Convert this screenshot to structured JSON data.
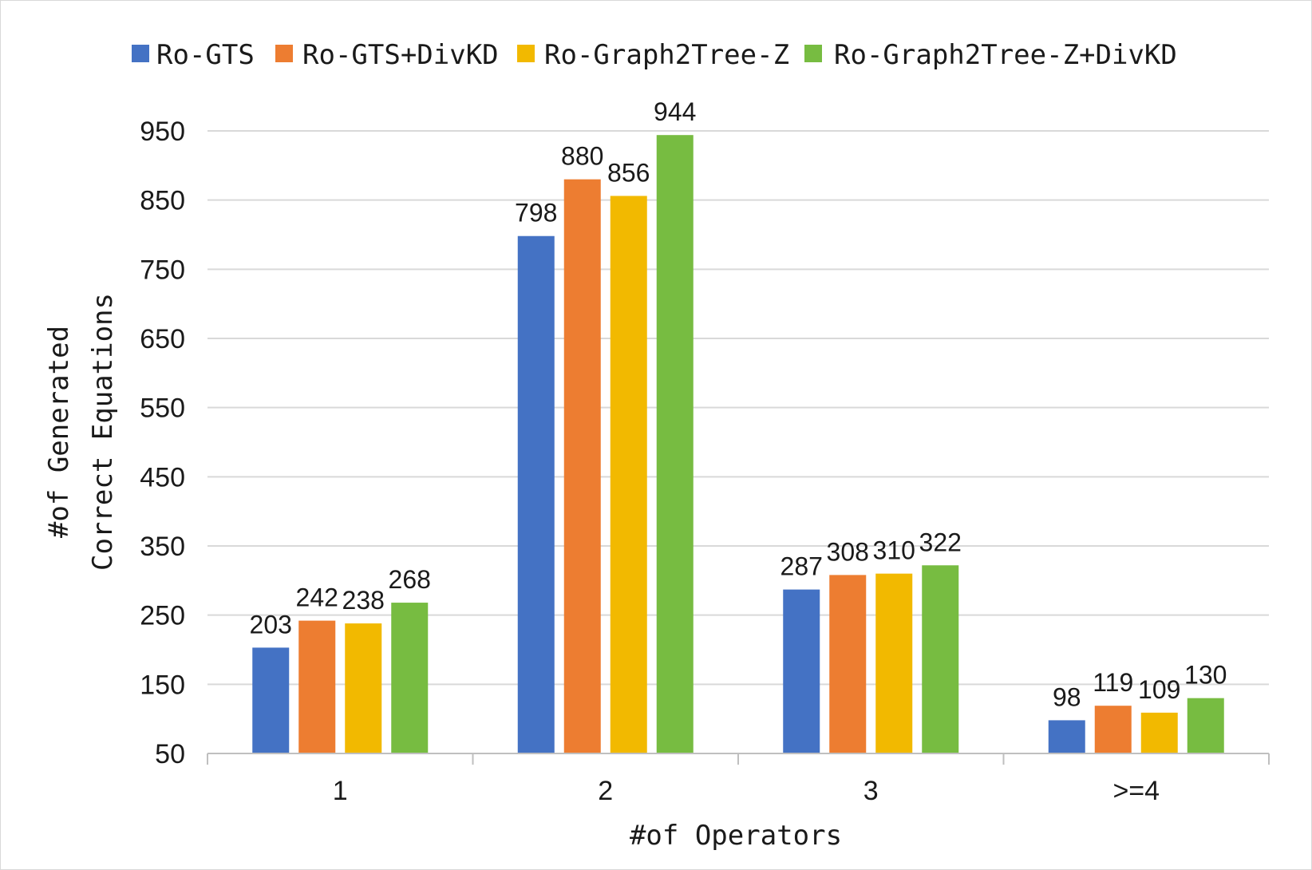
{
  "chart_data": {
    "type": "bar",
    "title": "",
    "xlabel": "#of Operators",
    "ylabel": [
      "#of Generated",
      "Correct Equations"
    ],
    "categories": [
      "1",
      "2",
      "3",
      ">=4"
    ],
    "yticks": [
      "50",
      "150",
      "250",
      "350",
      "450",
      "550",
      "650",
      "750",
      "850",
      "950"
    ],
    "ylim": [
      50,
      950
    ],
    "grid": true,
    "legend_position": "top",
    "series": [
      {
        "name": "Ro-GTS",
        "color": "#4472c4",
        "values": [
          203,
          798,
          287,
          98
        ]
      },
      {
        "name": "Ro-GTS+DivKD",
        "color": "#ed7d31",
        "values": [
          242,
          880,
          308,
          119
        ]
      },
      {
        "name": "Ro-Graph2Tree-Z",
        "color": "#f2b900",
        "values": [
          238,
          856,
          310,
          109
        ]
      },
      {
        "name": "Ro-Graph2Tree-Z+DivKD",
        "color": "#77bc41",
        "values": [
          268,
          944,
          322,
          130
        ]
      }
    ]
  }
}
